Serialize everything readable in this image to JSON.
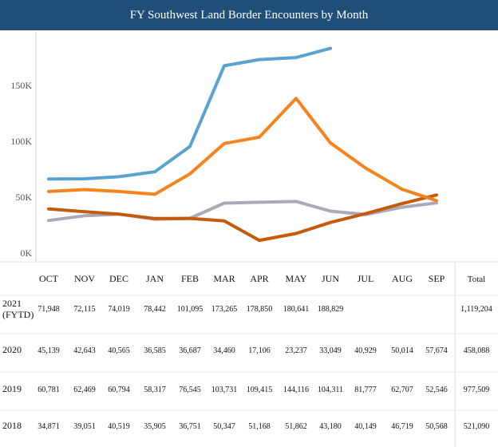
{
  "chart_data": {
    "type": "line",
    "title": "FY Southwest Land Border Encounters by Month",
    "xlabel": "",
    "ylabel": "",
    "categories": [
      "OCT",
      "NOV",
      "DEC",
      "JAN",
      "FEB",
      "MAR",
      "APR",
      "MAY",
      "JUN",
      "JUL",
      "AUG",
      "SEP"
    ],
    "y_ticks": [
      "0K",
      "50K",
      "100K",
      "150K"
    ],
    "ylim": [
      0,
      195000
    ],
    "grid": false,
    "legend": "none",
    "total_label": "Total",
    "series": [
      {
        "label": "2021\n(FYTD)",
        "label_lines": [
          "2021",
          "(FYTD)"
        ],
        "color": "#5ba3cf",
        "values": [
          71948,
          72115,
          74019,
          78442,
          101095,
          173265,
          178850,
          180641,
          188829,
          null,
          null,
          null
        ],
        "display": [
          "71,948",
          "72,115",
          "74,019",
          "78,442",
          "101,095",
          "173,265",
          "178,850",
          "180,641",
          "188,829",
          "",
          "",
          ""
        ],
        "total": "1,119,204"
      },
      {
        "label": "2020",
        "label_lines": [
          "2020"
        ],
        "color": "#c45a0a",
        "values": [
          45139,
          42643,
          40565,
          36585,
          36687,
          34460,
          17106,
          23237,
          33049,
          40929,
          50014,
          57674
        ],
        "display": [
          "45,139",
          "42,643",
          "40,565",
          "36,585",
          "36,687",
          "34,460",
          "17,106",
          "23,237",
          "33,049",
          "40,929",
          "50,014",
          "57,674"
        ],
        "total": "458,088"
      },
      {
        "label": "2019",
        "label_lines": [
          "2019"
        ],
        "color": "#f5841f",
        "values": [
          60781,
          62469,
          60794,
          58317,
          76545,
          103731,
          109415,
          144116,
          104311,
          81777,
          62707,
          52546
        ],
        "display": [
          "60,781",
          "62,469",
          "60,794",
          "58,317",
          "76,545",
          "103,731",
          "109,415",
          "144,116",
          "104,311",
          "81,777",
          "62,707",
          "52,546"
        ],
        "total": "977,509"
      },
      {
        "label": "2018",
        "label_lines": [
          "2018"
        ],
        "color": "#a9a9b9",
        "values": [
          34871,
          39051,
          40519,
          35905,
          36751,
          50347,
          51168,
          51862,
          43180,
          40149,
          46719,
          50568
        ],
        "display": [
          "34,871",
          "39,051",
          "40,519",
          "35,905",
          "36,751",
          "50,347",
          "51,168",
          "51,862",
          "43,180",
          "40,149",
          "46,719",
          "50,568"
        ],
        "total": "521,090"
      }
    ]
  }
}
